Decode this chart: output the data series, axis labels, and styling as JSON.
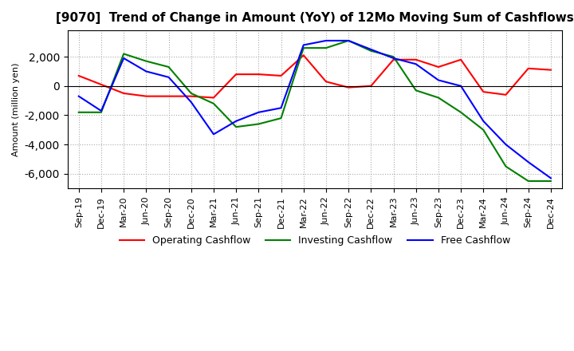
{
  "title": "[9070]  Trend of Change in Amount (YoY) of 12Mo Moving Sum of Cashflows",
  "ylabel": "Amount (million yen)",
  "x_labels": [
    "Sep-19",
    "Dec-19",
    "Mar-20",
    "Jun-20",
    "Sep-20",
    "Dec-20",
    "Mar-21",
    "Jun-21",
    "Sep-21",
    "Dec-21",
    "Mar-22",
    "Jun-22",
    "Sep-22",
    "Dec-22",
    "Mar-23",
    "Jun-23",
    "Sep-23",
    "Dec-23",
    "Mar-24",
    "Jun-24",
    "Sep-24",
    "Dec-24"
  ],
  "operating": [
    700,
    100,
    -500,
    -700,
    -700,
    -700,
    -800,
    800,
    800,
    700,
    2100,
    300,
    -100,
    0,
    1800,
    1800,
    1300,
    1800,
    -400,
    -600,
    1200,
    1100
  ],
  "investing": [
    -1800,
    -1800,
    2200,
    1700,
    1300,
    -500,
    -1200,
    -2800,
    -2600,
    -2200,
    2600,
    2600,
    3100,
    2400,
    2000,
    -300,
    -800,
    -1800,
    -3000,
    -5500,
    -6500,
    -6500
  ],
  "free": [
    -700,
    -1700,
    1900,
    1000,
    600,
    -1100,
    -3300,
    -2400,
    -1800,
    -1500,
    2800,
    3100,
    3100,
    2500,
    1900,
    1500,
    400,
    0,
    -2400,
    -4000,
    -5200,
    -6300
  ],
  "ylim": [
    -7000,
    3800
  ],
  "yticks": [
    -6000,
    -4000,
    -2000,
    0,
    2000
  ],
  "operating_color": "#ff0000",
  "investing_color": "#008000",
  "free_color": "#0000ff",
  "background_color": "#ffffff",
  "grid_color": "#aaaaaa",
  "title_fontsize": 11,
  "axis_fontsize": 8,
  "legend_fontsize": 9,
  "line_width": 1.5
}
